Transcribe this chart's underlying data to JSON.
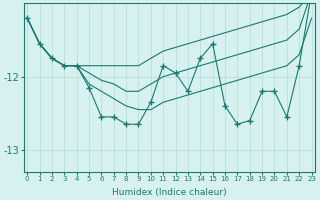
{
  "xlabel": "Humidex (Indice chaleur)",
  "series": [
    [
      -11.2,
      -11.55,
      -11.75,
      -11.85,
      -11.85,
      -12.15,
      -12.55,
      -12.55,
      -12.65,
      -12.65,
      -12.35,
      -11.85,
      -11.95,
      -12.2,
      -11.75,
      -11.55,
      -12.4,
      -12.65,
      -12.6,
      -12.2,
      -12.2,
      -12.55,
      -11.85,
      -10.85
    ],
    [
      -11.2,
      -11.55,
      -11.75,
      -11.85,
      -11.85,
      -12.1,
      -12.2,
      -12.3,
      -12.4,
      -12.45,
      -12.45,
      -12.35,
      -12.3,
      -12.25,
      -12.2,
      -12.15,
      -12.1,
      -12.05,
      -12.0,
      -11.95,
      -11.9,
      -11.85,
      -11.7,
      -11.2
    ],
    [
      -11.2,
      -11.55,
      -11.75,
      -11.85,
      -11.85,
      -11.95,
      -12.05,
      -12.1,
      -12.2,
      -12.2,
      -12.1,
      -12.0,
      -11.95,
      -11.9,
      -11.85,
      -11.8,
      -11.75,
      -11.7,
      -11.65,
      -11.6,
      -11.55,
      -11.5,
      -11.35,
      -10.85
    ],
    [
      -11.2,
      -11.55,
      -11.75,
      -11.85,
      -11.85,
      -11.85,
      -11.85,
      -11.85,
      -11.85,
      -11.85,
      -11.75,
      -11.65,
      -11.6,
      -11.55,
      -11.5,
      -11.45,
      -11.4,
      -11.35,
      -11.3,
      -11.25,
      -11.2,
      -11.15,
      -11.05,
      -10.85
    ]
  ],
  "x_values": [
    0,
    1,
    2,
    3,
    4,
    5,
    6,
    7,
    8,
    9,
    10,
    11,
    12,
    13,
    14,
    15,
    16,
    17,
    18,
    19,
    20,
    21,
    22,
    23
  ],
  "ylim": [
    -13.3,
    -11.0
  ],
  "xlim": [
    -0.3,
    23.3
  ],
  "yticks": [
    -13,
    -12
  ],
  "xticks": [
    0,
    1,
    2,
    3,
    4,
    5,
    6,
    7,
    8,
    9,
    10,
    11,
    12,
    13,
    14,
    15,
    16,
    17,
    18,
    19,
    20,
    21,
    22,
    23
  ],
  "line_color": "#1a7a6e",
  "bg_color": "#d7f0f0",
  "grid_color": "#b8dede",
  "marker": "+",
  "linewidth": 0.8,
  "markersize": 4
}
